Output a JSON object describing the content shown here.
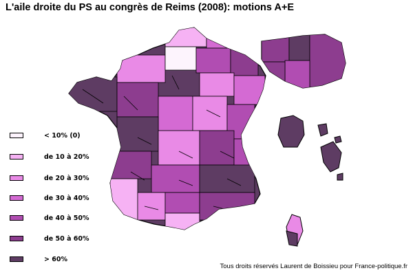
{
  "title": "L'aile droite du PS au congrès de Reims (2008): motions A+E",
  "legend": [
    {
      "label": "< 10% (0)",
      "color": "#fdf4fd"
    },
    {
      "label": "de 10 à 20%",
      "color": "#f6b2f4"
    },
    {
      "label": "de 20 à 30%",
      "color": "#e98ae6"
    },
    {
      "label": "de 30 à 40%",
      "color": "#d46ad3"
    },
    {
      "label": "de 40 à 50%",
      "color": "#b14db2"
    },
    {
      "label": "de 50 à 60%",
      "color": "#8d3d8f"
    },
    {
      "label": "> 60%",
      "color": "#5e3c63"
    }
  ],
  "credit": "Tous droits réservés Laurent de Boissieu pour France-politique.fr"
}
